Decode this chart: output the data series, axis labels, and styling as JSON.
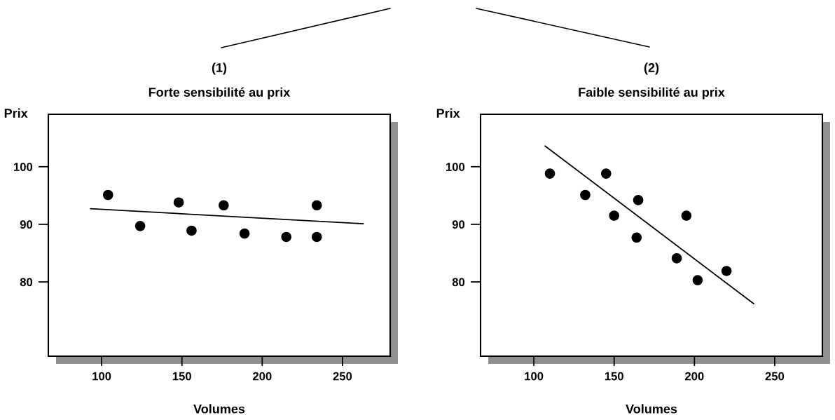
{
  "chart_data": [
    {
      "type": "scatter",
      "title": "(1)",
      "subtitle": "Forte sensibilité au prix",
      "xlabel": "Volumes",
      "ylabel": "Prix",
      "xlim": [
        66.8,
        279.7
      ],
      "ylim": [
        67.1,
        109.1
      ],
      "xticks": [
        100,
        150,
        200,
        250
      ],
      "yticks": [
        80,
        90,
        100
      ],
      "grid": false,
      "legend": false,
      "series": [
        {
          "color": "#000000",
          "marker": "circle",
          "x": [
            104,
            124,
            148,
            156,
            176,
            189,
            215,
            234,
            234
          ],
          "values": [
            95.1,
            89.7,
            93.8,
            88.9,
            93.3,
            88.4,
            87.8,
            93.3,
            87.8
          ]
        },
        {
          "type": "line",
          "color": "#000000",
          "line_style": "solid",
          "x": [
            93,
            263
          ],
          "values": [
            92.7,
            90.1
          ]
        }
      ]
    },
    {
      "type": "scatter",
      "title": "(2)",
      "subtitle": "Faible sensibilité au prix",
      "xlabel": "Volumes",
      "ylabel": "Prix",
      "xlim": [
        66.8,
        279.7
      ],
      "ylim": [
        67.1,
        109.1
      ],
      "xticks": [
        100,
        150,
        200,
        250
      ],
      "yticks": [
        80,
        90,
        100
      ],
      "grid": false,
      "legend": false,
      "series": [
        {
          "color": "#000000",
          "marker": "circle",
          "x": [
            110,
            132,
            145,
            150,
            164,
            165,
            189,
            195,
            202,
            220
          ],
          "values": [
            98.8,
            95.1,
            98.8,
            91.5,
            87.7,
            94.2,
            84.1,
            91.5,
            80.3,
            81.9
          ]
        },
        {
          "type": "line",
          "color": "#000000",
          "line_style": "solid",
          "x": [
            107,
            237
          ],
          "values": [
            103.6,
            76.2
          ]
        }
      ]
    }
  ]
}
